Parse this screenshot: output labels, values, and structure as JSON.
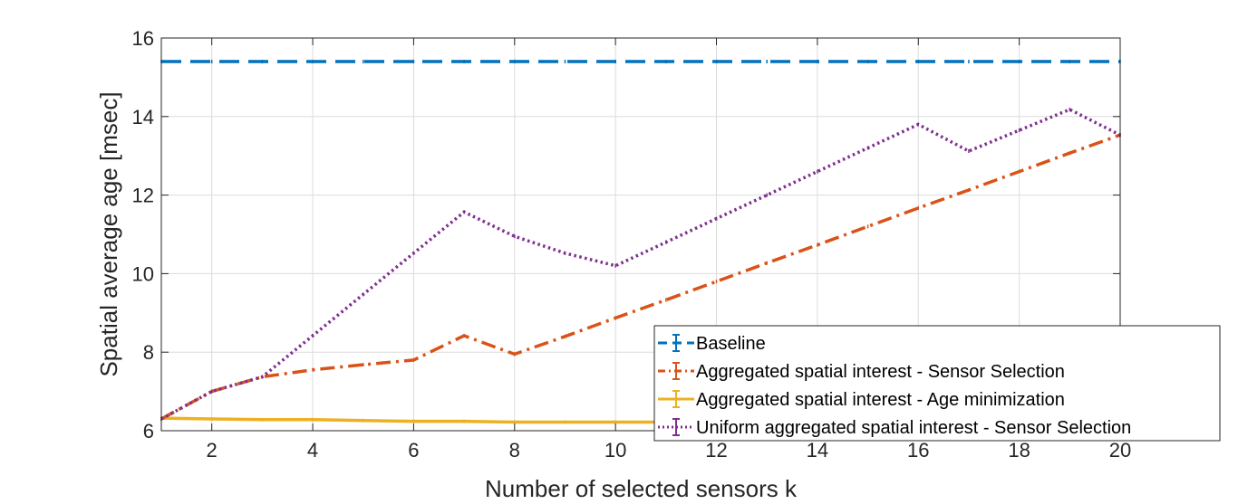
{
  "chart_data": {
    "type": "line",
    "title": "",
    "xlabel": "Number of selected sensors k",
    "ylabel": "Spatial average age [msec]",
    "xlim": [
      1,
      20
    ],
    "ylim": [
      6,
      16
    ],
    "xticks": [
      2,
      4,
      6,
      8,
      10,
      12,
      14,
      16,
      18,
      20
    ],
    "yticks": [
      6,
      8,
      10,
      12,
      14,
      16
    ],
    "grid": true,
    "legend_position": "bottom-right",
    "x": [
      1,
      2,
      3,
      4,
      5,
      6,
      7,
      8,
      9,
      10,
      11,
      12,
      13,
      14,
      15,
      16,
      17,
      18,
      19,
      20
    ],
    "series": [
      {
        "name": "Baseline",
        "color": "#0072BD",
        "style": "dashed",
        "values": [
          15.4,
          15.4,
          15.4,
          15.4,
          15.4,
          15.4,
          15.4,
          15.4,
          15.4,
          15.4,
          15.4,
          15.4,
          15.4,
          15.4,
          15.4,
          15.4,
          15.4,
          15.4,
          15.4,
          15.4
        ]
      },
      {
        "name": "Aggregated spatial interest - Sensor Selection",
        "color": "#D95319",
        "style": "dashdot",
        "values": [
          6.3,
          7.0,
          7.37,
          7.55,
          7.68,
          7.8,
          8.42,
          7.95,
          8.4,
          8.87,
          9.33,
          9.8,
          10.27,
          10.73,
          11.2,
          11.67,
          12.13,
          12.6,
          13.07,
          13.53
        ]
      },
      {
        "name": "Aggregated spatial interest - Age minimization",
        "color": "#EDB120",
        "style": "solid",
        "values": [
          6.32,
          6.3,
          6.28,
          6.28,
          6.26,
          6.24,
          6.24,
          6.22,
          6.22,
          6.22,
          6.22,
          6.22,
          6.22,
          6.22,
          6.22,
          6.22,
          6.22,
          6.22,
          6.22,
          6.22
        ]
      },
      {
        "name": "Uniform aggregated spatial interest - Sensor Selection",
        "color": "#7E2F8E",
        "style": "dotted",
        "values": [
          6.3,
          7.0,
          7.37,
          8.42,
          9.47,
          10.52,
          11.57,
          10.95,
          10.52,
          10.2,
          10.8,
          11.4,
          12.0,
          12.6,
          13.2,
          13.8,
          13.12,
          13.65,
          14.18,
          13.53
        ]
      }
    ]
  }
}
